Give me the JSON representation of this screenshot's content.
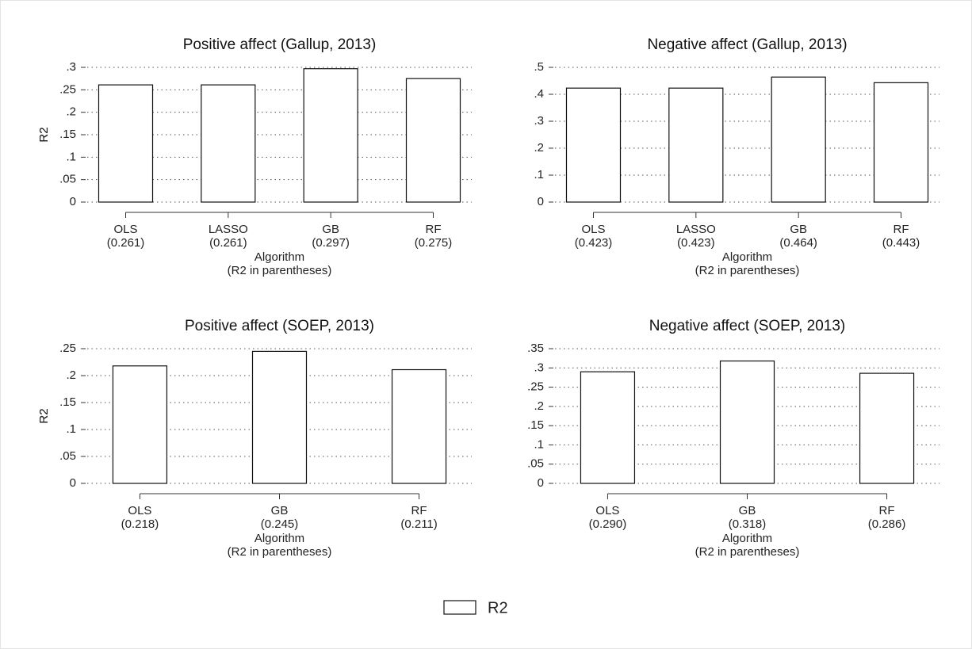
{
  "chart_data": [
    {
      "type": "bar",
      "title": "Positive affect (Gallup, 2013)",
      "ylabel": "R2",
      "xlabel": [
        "Algorithm",
        "(R2 in parentheses)"
      ],
      "categories": [
        "OLS",
        "LASSO",
        "GB",
        "RF"
      ],
      "values": [
        0.261,
        0.261,
        0.297,
        0.275
      ],
      "value_labels": [
        "(0.261)",
        "(0.261)",
        "(0.297)",
        "(0.275)"
      ],
      "color": "#ffffff",
      "ylim": [
        0,
        0.3
      ],
      "yticks": [
        0,
        {
          "value": 0.05,
          "label": ".05"
        },
        {
          "value": 0.1,
          "label": ".1"
        },
        {
          "value": 0.15,
          "label": ".15"
        },
        {
          "value": 0.2,
          "label": ".2"
        },
        {
          "value": 0.25,
          "label": ".25"
        },
        {
          "value": 0.3,
          "label": ".3"
        }
      ],
      "grid": true
    },
    {
      "type": "bar",
      "title": "Negative affect (Gallup, 2013)",
      "ylabel": "R2",
      "xlabel": [
        "Algorithm",
        "(R2 in parentheses)"
      ],
      "categories": [
        "OLS",
        "LASSO",
        "GB",
        "RF"
      ],
      "values": [
        0.423,
        0.423,
        0.464,
        0.443
      ],
      "value_labels": [
        "(0.423)",
        "(0.423)",
        "(0.464)",
        "(0.443)"
      ],
      "color": "#ffffff",
      "ylim": [
        0,
        0.5
      ],
      "yticks": [
        0,
        {
          "value": 0.1,
          "label": ".1"
        },
        {
          "value": 0.2,
          "label": ".2"
        },
        {
          "value": 0.3,
          "label": ".3"
        },
        {
          "value": 0.4,
          "label": ".4"
        },
        {
          "value": 0.5,
          "label": ".5"
        }
      ],
      "grid": true
    },
    {
      "type": "bar",
      "title": "Positive affect (SOEP, 2013)",
      "ylabel": "R2",
      "xlabel": [
        "Algorithm",
        "(R2 in parentheses)"
      ],
      "categories": [
        "OLS",
        "GB",
        "RF"
      ],
      "values": [
        0.218,
        0.245,
        0.211
      ],
      "value_labels": [
        "(0.218)",
        "(0.245)",
        "(0.211)"
      ],
      "color": "#ffffff",
      "ylim": [
        0,
        0.25
      ],
      "yticks": [
        0,
        {
          "value": 0.05,
          "label": ".05"
        },
        {
          "value": 0.1,
          "label": ".1"
        },
        {
          "value": 0.15,
          "label": ".15"
        },
        {
          "value": 0.2,
          "label": ".2"
        },
        {
          "value": 0.25,
          "label": ".25"
        }
      ],
      "grid": true
    },
    {
      "type": "bar",
      "title": "Negative affect (SOEP, 2013)",
      "ylabel": "R2",
      "xlabel": [
        "Algorithm",
        "(R2 in parentheses)"
      ],
      "categories": [
        "OLS",
        "GB",
        "RF"
      ],
      "values": [
        0.29,
        0.318,
        0.286
      ],
      "value_labels": [
        "(0.290)",
        "(0.318)",
        "(0.286)"
      ],
      "color": "#ffffff",
      "ylim": [
        0,
        0.35
      ],
      "yticks": [
        0,
        {
          "value": 0.05,
          "label": ".05"
        },
        {
          "value": 0.1,
          "label": ".1"
        },
        {
          "value": 0.15,
          "label": ".15"
        },
        {
          "value": 0.2,
          "label": ".2"
        },
        {
          "value": 0.25,
          "label": ".25"
        },
        {
          "value": 0.3,
          "label": ".3"
        },
        {
          "value": 0.35,
          "label": ".35"
        }
      ],
      "grid": true
    }
  ],
  "legend": "R2"
}
